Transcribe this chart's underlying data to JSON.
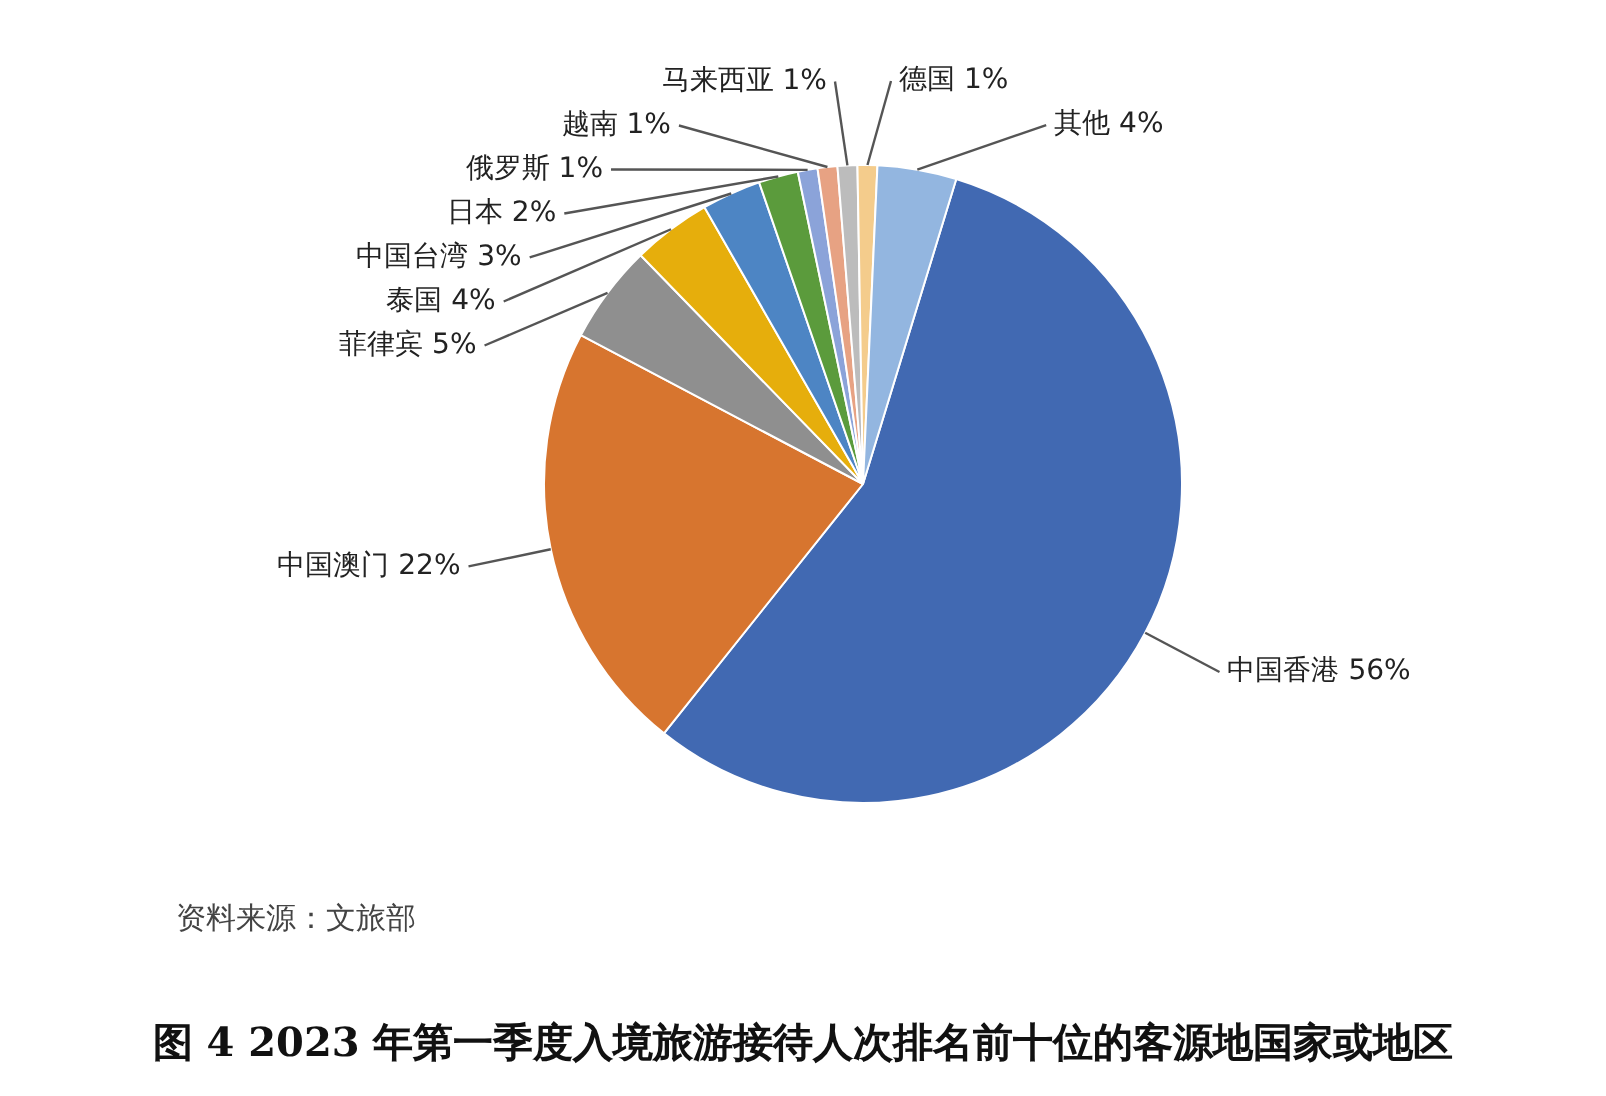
{
  "chart_data": {
    "type": "pie",
    "title": "图 4 2023 年第一季度入境旅游接待人次排名前十位的客源地国家或地区",
    "categories": [
      "中国香港",
      "中国澳门",
      "菲律宾",
      "泰国",
      "中国台湾",
      "日本",
      "俄罗斯",
      "越南",
      "马来西亚",
      "德国",
      "其他"
    ],
    "values": [
      56,
      22,
      5,
      4,
      3,
      2,
      1,
      1,
      1,
      1,
      4
    ],
    "value_labels": [
      "56%",
      "22%",
      "5%",
      "4%",
      "3%",
      "2%",
      "1%",
      "1%",
      "1%",
      "1%",
      "4%"
    ],
    "colors": [
      "#4169b2",
      "#d7752f",
      "#8f8f8f",
      "#e6ae0c",
      "#4d85c4",
      "#5b9b3c",
      "#8ba3d9",
      "#e7a283",
      "#bcbcbc",
      "#f4cc8c",
      "#93b6e0"
    ],
    "annotations": [
      "资料来源：文旅部"
    ]
  }
}
